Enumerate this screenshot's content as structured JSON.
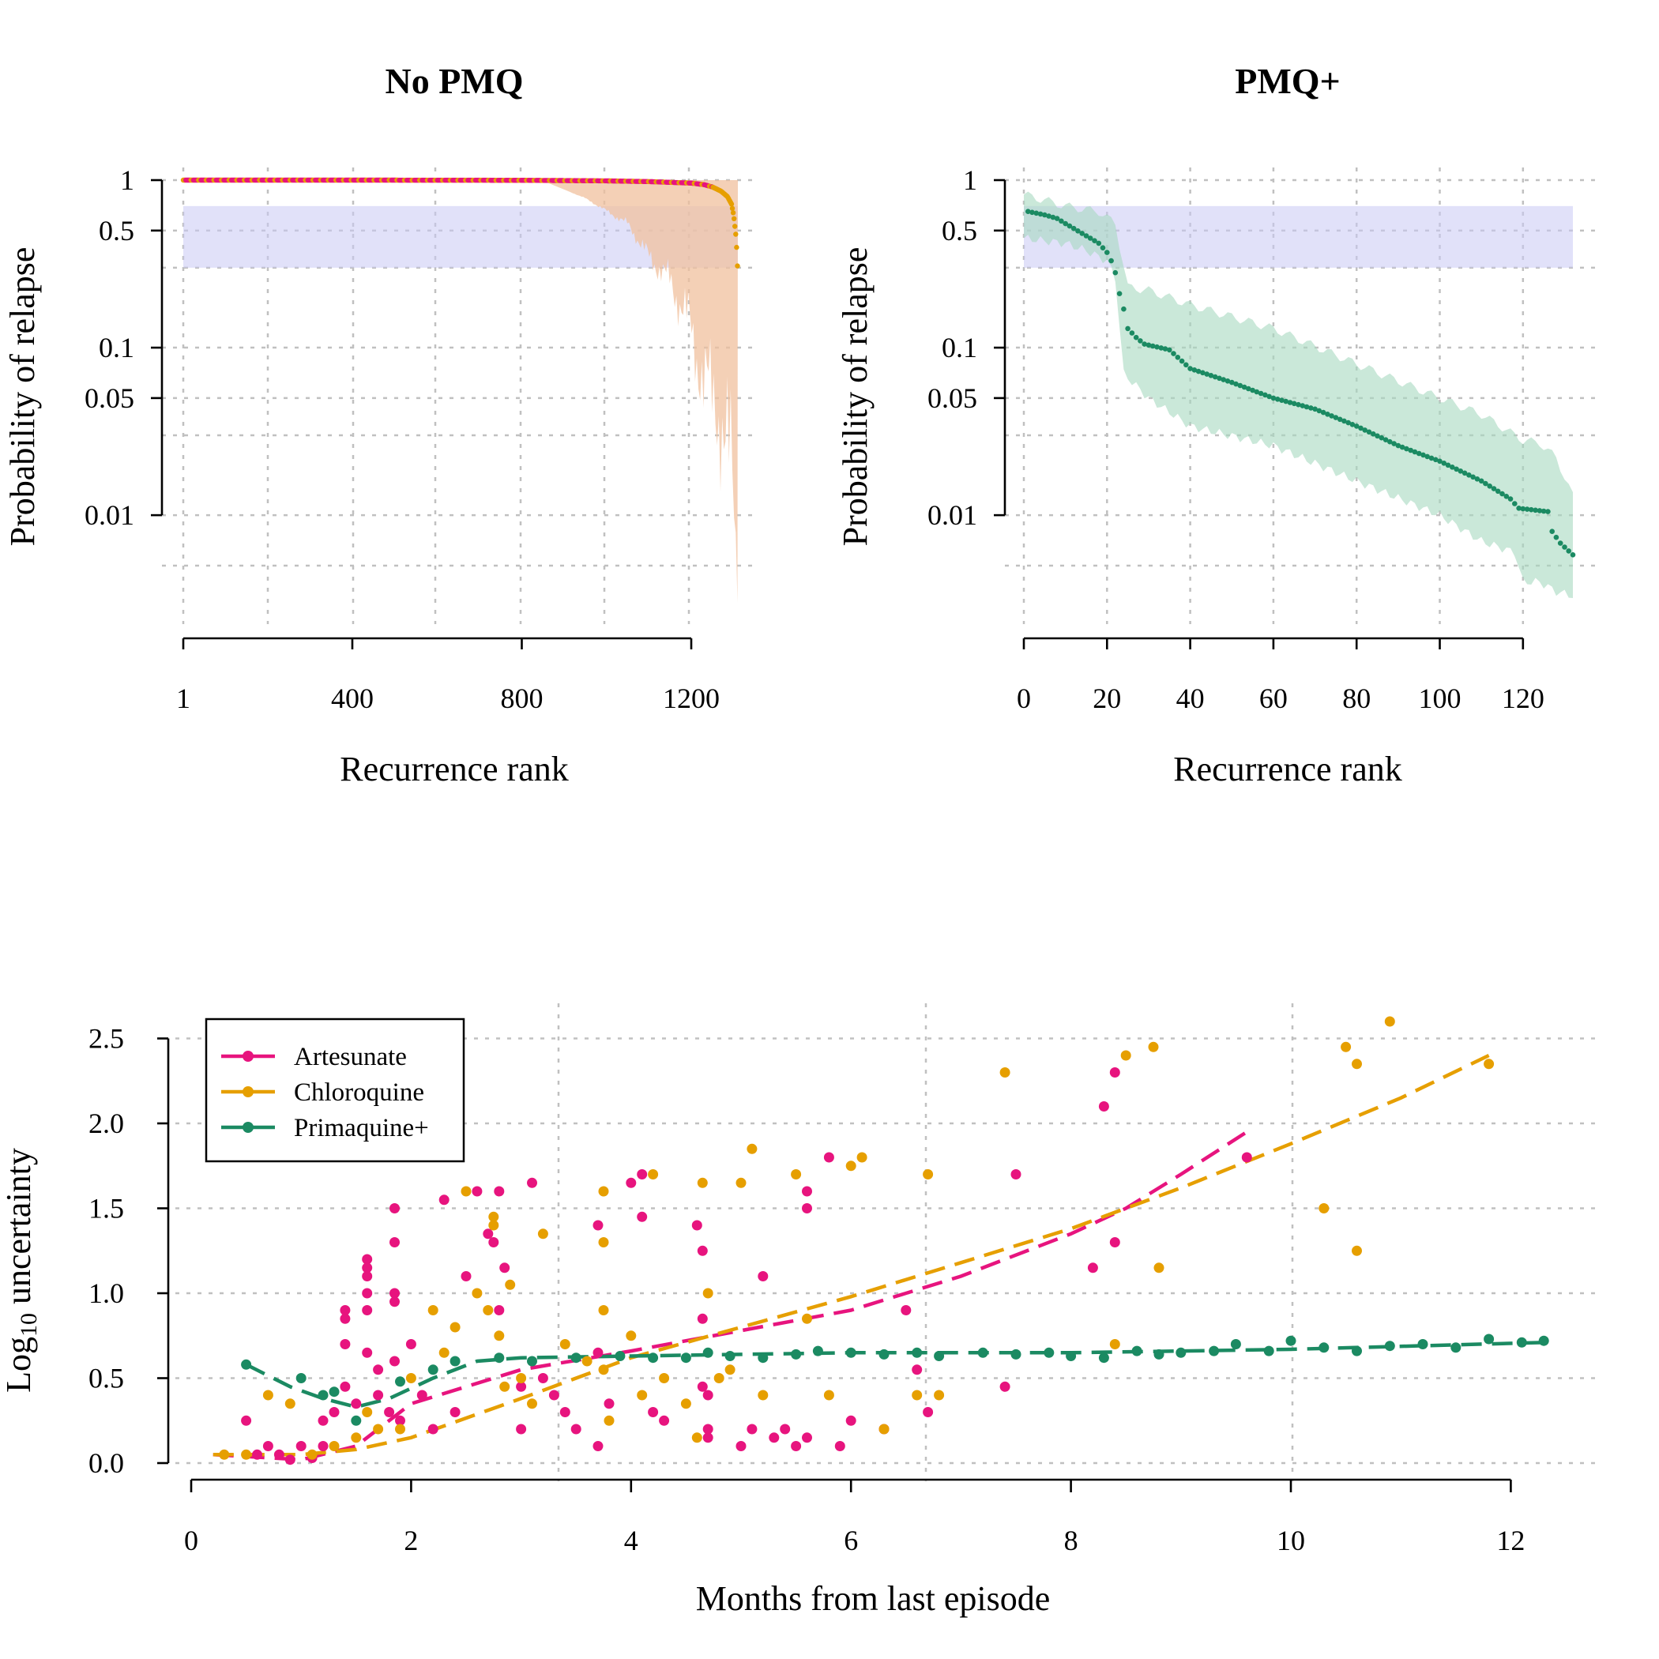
{
  "colors": {
    "artesunate": "#E7147E",
    "chloroquine": "#E69F00",
    "primaquine": "#1B8A62",
    "band": "#C8C8F4",
    "ci_nopmq": "#F0C09E",
    "ci_pmq": "#A6D8C0"
  },
  "panels": {
    "a": {
      "title": "No PMQ",
      "xlabel": "Recurrence rank",
      "ylabel": "Probability of relapse"
    },
    "b": {
      "title": "PMQ+",
      "xlabel": "Recurrence rank",
      "ylabel": "Probability of relapse"
    },
    "c": {
      "xlabel": "Months from last episode",
      "ylabel_main": "Log",
      "ylabel_sub": "10",
      "ylabel_rest": " uncertainty"
    }
  },
  "chart_data": [
    {
      "type": "scatter",
      "title": "No PMQ",
      "xlabel": "Recurrence rank",
      "ylabel": "Probability of relapse",
      "y_scale": "log",
      "xlim": [
        1,
        1310
      ],
      "ylim": [
        0.003,
        1
      ],
      "x_ticks": [
        "1",
        "400",
        "800",
        "1200"
      ],
      "y_ticks": [
        "1",
        "0.5",
        "0.1",
        "0.05",
        "0.01"
      ],
      "shaded_band": [
        0.3,
        0.7
      ],
      "n_points": 1310,
      "points_anchor": {
        "x": [
          1,
          400,
          800,
          1000,
          1100,
          1150,
          1200,
          1230,
          1250,
          1270,
          1285,
          1295,
          1300,
          1303,
          1306,
          1308,
          1310
        ],
        "y": [
          1,
          1,
          0.998,
          0.99,
          0.98,
          0.97,
          0.96,
          0.94,
          0.91,
          0.86,
          0.8,
          0.72,
          0.62,
          0.53,
          0.45,
          0.35,
          0.27
        ]
      },
      "ci_lower_anchor": {
        "x": [
          1,
          850,
          950,
          1050,
          1100,
          1150,
          1200,
          1230,
          1260,
          1280,
          1290,
          1300,
          1305,
          1310
        ],
        "y": [
          1,
          0.99,
          0.78,
          0.55,
          0.35,
          0.25,
          0.13,
          0.06,
          0.05,
          0.025,
          0.02,
          0.015,
          0.006,
          0.0045
        ]
      },
      "series": [
        {
          "name": "Artesunate",
          "color": "#E7147E"
        },
        {
          "name": "Chloroquine",
          "color": "#E69F00"
        }
      ]
    },
    {
      "type": "scatter",
      "title": "PMQ+",
      "xlabel": "Recurrence rank",
      "ylabel": "Probability of relapse",
      "y_scale": "log",
      "xlim": [
        0,
        132
      ],
      "ylim": [
        0.003,
        1
      ],
      "x_ticks": [
        "0",
        "20",
        "40",
        "60",
        "80",
        "100",
        "120"
      ],
      "y_ticks": [
        "1",
        "0.5",
        "0.1",
        "0.05",
        "0.01"
      ],
      "shaded_band": [
        0.3,
        0.7
      ],
      "points_anchor": {
        "x": [
          1,
          5,
          8,
          10,
          16,
          18,
          20,
          21,
          22,
          23,
          24,
          25,
          27,
          29,
          35,
          40,
          50,
          60,
          70,
          80,
          90,
          100,
          110,
          117,
          119,
          126,
          127,
          129,
          132
        ],
        "y": [
          0.65,
          0.62,
          0.59,
          0.55,
          0.45,
          0.42,
          0.37,
          0.33,
          0.28,
          0.21,
          0.17,
          0.13,
          0.115,
          0.105,
          0.097,
          0.075,
          0.062,
          0.05,
          0.043,
          0.034,
          0.026,
          0.021,
          0.016,
          0.0125,
          0.011,
          0.0105,
          0.008,
          0.0068,
          0.0058
        ]
      },
      "ci_upper_anchor": {
        "x": [
          0,
          5,
          10,
          18,
          22,
          25,
          30,
          40,
          60,
          80,
          100,
          110,
          120,
          124,
          128,
          132
        ],
        "y": [
          0.82,
          0.76,
          0.7,
          0.65,
          0.55,
          0.23,
          0.22,
          0.18,
          0.13,
          0.08,
          0.05,
          0.04,
          0.028,
          0.027,
          0.022,
          0.013
        ]
      },
      "ci_lower_anchor": {
        "x": [
          0,
          10,
          15,
          20,
          22,
          24,
          30,
          40,
          60,
          80,
          100,
          110,
          118,
          120,
          124,
          128,
          132
        ],
        "y": [
          0.45,
          0.42,
          0.38,
          0.33,
          0.26,
          0.07,
          0.05,
          0.034,
          0.026,
          0.016,
          0.01,
          0.007,
          0.006,
          0.004,
          0.004,
          0.0035,
          0.0033
        ]
      },
      "series": [
        {
          "name": "Primaquine+",
          "color": "#1B8A62"
        }
      ]
    },
    {
      "type": "scatter",
      "xlabel": "Months from last episode",
      "ylabel": "Log10 uncertainty",
      "xlim": [
        0,
        12.5
      ],
      "ylim": [
        0,
        2.6
      ],
      "x_ticks": [
        "0",
        "2",
        "4",
        "6",
        "8",
        "10",
        "12"
      ],
      "y_ticks": [
        "0.0",
        "0.5",
        "1.0",
        "1.5",
        "2.0",
        "2.5"
      ],
      "legend_position": "top-left",
      "series": [
        {
          "name": "Artesunate",
          "color": "#E7147E",
          "x": [
            0.5,
            0.6,
            0.7,
            0.8,
            0.9,
            1.0,
            1.1,
            1.2,
            1.2,
            1.3,
            1.4,
            1.4,
            1.4,
            1.4,
            1.5,
            1.6,
            1.6,
            1.6,
            1.6,
            1.6,
            1.6,
            1.7,
            1.7,
            1.8,
            1.85,
            1.85,
            1.85,
            1.85,
            1.85,
            1.9,
            2.0,
            2.1,
            2.2,
            2.3,
            2.4,
            2.5,
            2.6,
            2.7,
            2.75,
            2.8,
            2.8,
            2.85,
            3.0,
            3.0,
            3.1,
            3.2,
            3.3,
            3.4,
            3.5,
            3.7,
            3.7,
            3.7,
            3.8,
            4.0,
            4.1,
            4.1,
            4.2,
            4.3,
            4.6,
            4.65,
            4.65,
            4.65,
            4.7,
            4.7,
            4.7,
            5.0,
            5.1,
            5.2,
            5.3,
            5.4,
            5.5,
            5.6,
            5.6,
            5.6,
            5.8,
            5.9,
            6.0,
            6.3,
            6.5,
            6.6,
            6.7,
            7.4,
            7.5,
            8.2,
            8.3,
            8.4,
            8.4,
            9.6
          ],
          "y": [
            0.25,
            0.05,
            0.1,
            0.05,
            0.02,
            0.1,
            0.03,
            0.25,
            0.1,
            0.3,
            0.9,
            0.85,
            0.7,
            0.45,
            0.35,
            1.2,
            1.15,
            1.1,
            1.0,
            0.9,
            0.65,
            0.55,
            0.4,
            0.3,
            1.5,
            1.3,
            1.0,
            0.95,
            0.6,
            0.25,
            0.7,
            0.4,
            0.2,
            1.55,
            0.3,
            1.1,
            1.6,
            1.35,
            1.3,
            1.6,
            0.9,
            1.15,
            0.45,
            0.2,
            1.65,
            0.5,
            0.4,
            0.3,
            0.2,
            1.4,
            0.65,
            0.1,
            0.35,
            1.65,
            1.7,
            1.45,
            0.3,
            0.25,
            1.4,
            1.25,
            0.85,
            0.45,
            0.4,
            0.2,
            0.15,
            0.1,
            0.2,
            1.1,
            0.15,
            0.2,
            0.1,
            1.6,
            1.5,
            0.15,
            1.8,
            0.1,
            0.25,
            0.2,
            0.9,
            0.55,
            0.3,
            0.45,
            1.7,
            1.15,
            2.1,
            2.3,
            1.3,
            1.8
          ]
        },
        {
          "name": "Chloroquine",
          "color": "#E69F00",
          "x": [
            0.3,
            0.5,
            0.7,
            0.9,
            1.1,
            1.3,
            1.5,
            1.6,
            1.7,
            1.9,
            2.0,
            2.2,
            2.3,
            2.4,
            2.5,
            2.6,
            2.7,
            2.75,
            2.75,
            2.8,
            2.85,
            2.9,
            3.0,
            3.1,
            3.2,
            3.4,
            3.6,
            3.75,
            3.75,
            3.75,
            3.75,
            3.8,
            4.0,
            4.1,
            4.2,
            4.3,
            4.5,
            4.6,
            4.65,
            4.7,
            4.8,
            4.9,
            5.0,
            5.1,
            5.2,
            5.5,
            5.6,
            5.8,
            6.0,
            6.1,
            6.3,
            6.6,
            6.7,
            6.8,
            7.4,
            8.4,
            8.5,
            8.75,
            8.8,
            10.3,
            10.5,
            10.6,
            10.6,
            10.9,
            11.8
          ],
          "y": [
            0.05,
            0.05,
            0.4,
            0.35,
            0.05,
            0.1,
            0.15,
            0.3,
            0.2,
            0.2,
            0.5,
            0.9,
            0.65,
            0.8,
            1.6,
            1.0,
            0.9,
            1.4,
            1.45,
            0.75,
            0.45,
            1.05,
            0.5,
            0.35,
            1.35,
            0.7,
            0.6,
            1.6,
            1.3,
            0.9,
            0.55,
            0.25,
            0.75,
            0.4,
            1.7,
            0.5,
            0.35,
            0.15,
            1.65,
            1.0,
            0.5,
            0.55,
            1.65,
            1.85,
            0.4,
            1.7,
            0.85,
            0.4,
            1.75,
            1.8,
            0.2,
            0.4,
            1.7,
            0.4,
            2.3,
            0.7,
            2.4,
            2.45,
            1.15,
            1.5,
            2.45,
            2.35,
            1.25,
            2.6,
            2.35
          ]
        },
        {
          "name": "Primaquine+",
          "color": "#1B8A62",
          "x": [
            0.5,
            1.0,
            1.2,
            1.3,
            1.5,
            1.9,
            2.2,
            2.4,
            2.8,
            3.1,
            3.5,
            3.9,
            4.2,
            4.5,
            4.7,
            4.9,
            5.2,
            5.5,
            5.7,
            6.0,
            6.3,
            6.6,
            6.8,
            7.2,
            7.5,
            7.8,
            8.0,
            8.3,
            8.6,
            8.8,
            9.0,
            9.3,
            9.5,
            9.8,
            10.0,
            10.3,
            10.6,
            10.9,
            11.2,
            11.5,
            11.8,
            12.1,
            12.3
          ],
          "y": [
            0.58,
            0.5,
            0.4,
            0.42,
            0.25,
            0.48,
            0.55,
            0.6,
            0.62,
            0.6,
            0.62,
            0.63,
            0.62,
            0.62,
            0.65,
            0.63,
            0.62,
            0.64,
            0.66,
            0.65,
            0.64,
            0.65,
            0.63,
            0.65,
            0.64,
            0.65,
            0.63,
            0.62,
            0.66,
            0.64,
            0.65,
            0.66,
            0.7,
            0.66,
            0.72,
            0.68,
            0.66,
            0.69,
            0.7,
            0.68,
            0.73,
            0.71,
            0.72
          ]
        }
      ],
      "trend_lines": [
        {
          "name": "Artesunate",
          "color": "#E7147E",
          "x": [
            0.2,
            1.0,
            1.5,
            2.0,
            3.0,
            4.0,
            5.0,
            6.0,
            7.0,
            8.0,
            8.5,
            9.0,
            9.6
          ],
          "y": [
            0.05,
            0.02,
            0.1,
            0.35,
            0.55,
            0.66,
            0.78,
            0.9,
            1.1,
            1.35,
            1.5,
            1.7,
            1.95
          ]
        },
        {
          "name": "Chloroquine",
          "color": "#E69F00",
          "x": [
            0.2,
            1.0,
            1.5,
            2.0,
            3.0,
            4.0,
            5.0,
            6.0,
            7.0,
            8.0,
            9.0,
            10.0,
            11.0,
            11.8
          ],
          "y": [
            0.05,
            0.05,
            0.08,
            0.15,
            0.38,
            0.62,
            0.8,
            0.98,
            1.18,
            1.38,
            1.62,
            1.88,
            2.15,
            2.4
          ]
        },
        {
          "name": "Primaquine+",
          "color": "#1B8A62",
          "x": [
            0.5,
            0.9,
            1.2,
            1.5,
            1.8,
            2.2,
            2.6,
            3.0,
            4.0,
            5.0,
            6.0,
            8.0,
            10.0,
            12.3
          ],
          "y": [
            0.58,
            0.45,
            0.38,
            0.33,
            0.38,
            0.5,
            0.6,
            0.62,
            0.63,
            0.64,
            0.65,
            0.65,
            0.67,
            0.71
          ]
        }
      ]
    }
  ]
}
